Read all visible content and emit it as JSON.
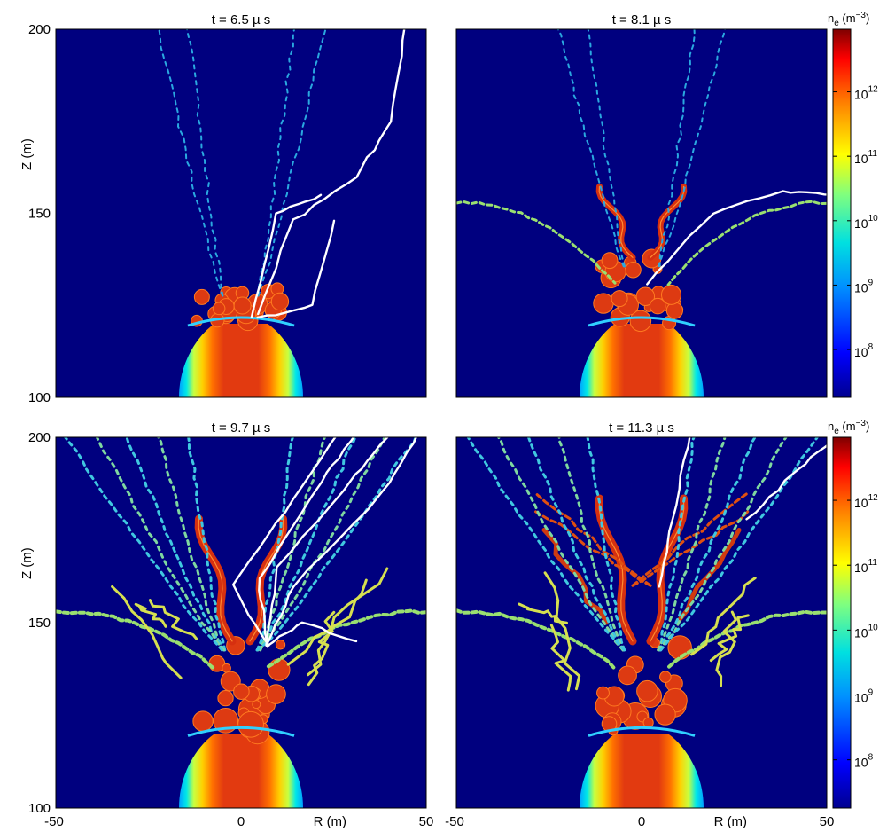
{
  "figure": {
    "type": "simulation-colormap-panels",
    "colors": {
      "background": "#00007f",
      "channel_core": "#e23a10",
      "trajectories": "#ffffff"
    }
  },
  "chart_data": [
    {
      "type": "heatmap",
      "title": "t = 6.5 µ s",
      "xlabel": "",
      "ylabel": "Z (m)",
      "xlim": [
        -50,
        50
      ],
      "ylim": [
        100,
        200
      ],
      "x_ticks": [],
      "y_ticks": [
        "200",
        "150",
        "100"
      ],
      "colorbar": null
    },
    {
      "type": "heatmap",
      "title": "t = 8.1 µ s",
      "xlabel": "",
      "ylabel": "",
      "xlim": [
        -50,
        50
      ],
      "ylim": [
        100,
        200
      ],
      "x_ticks": [],
      "y_ticks": [],
      "colorbar": {
        "label_base": "n",
        "label_sub": "e",
        "label_unit": " (m",
        "label_sup": "−3",
        "label_close": ")",
        "ticks": [
          {
            "base": "10",
            "exp": "12"
          },
          {
            "base": "10",
            "exp": "11"
          },
          {
            "base": "10",
            "exp": "10"
          },
          {
            "base": "10",
            "exp": "9"
          },
          {
            "base": "10",
            "exp": "8"
          }
        ]
      }
    },
    {
      "type": "heatmap",
      "title": "t = 9.7 µ s",
      "xlabel": "R (m)",
      "ylabel": "Z (m)",
      "xlim": [
        -50,
        50
      ],
      "ylim": [
        100,
        200
      ],
      "x_ticks": [
        "-50",
        "0",
        "50"
      ],
      "y_ticks": [
        "200",
        "150",
        "100"
      ],
      "colorbar": null
    },
    {
      "type": "heatmap",
      "title": "t = 11.3 µ s",
      "xlabel": "R (m)",
      "ylabel": "",
      "xlim": [
        -50,
        50
      ],
      "ylim": [
        100,
        200
      ],
      "x_ticks": [
        "-50",
        "0",
        "50"
      ],
      "y_ticks": [],
      "colorbar": {
        "label_base": "n",
        "label_sub": "e",
        "label_unit": " (m",
        "label_sup": "−3",
        "label_close": ")",
        "ticks": [
          {
            "base": "10",
            "exp": "12"
          },
          {
            "base": "10",
            "exp": "11"
          },
          {
            "base": "10",
            "exp": "10"
          },
          {
            "base": "10",
            "exp": "9"
          },
          {
            "base": "10",
            "exp": "8"
          }
        ]
      }
    }
  ]
}
